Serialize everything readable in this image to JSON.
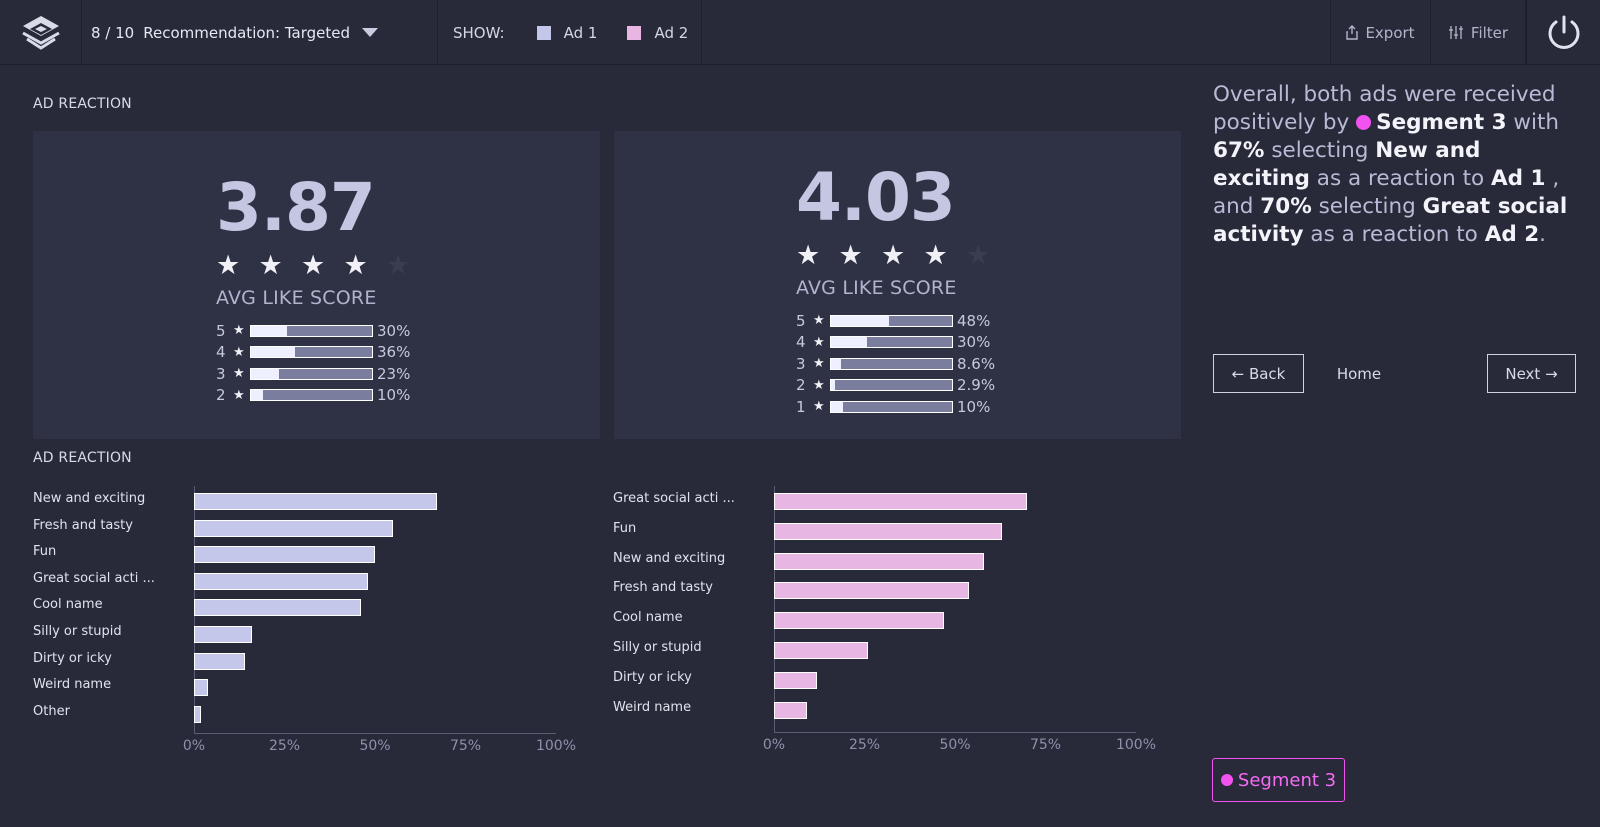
{
  "header": {
    "logo_icon": "stacked-layers-logo-icon",
    "step": "8 / 10",
    "recommendation": "Recommendation: Targeted",
    "show_label": "SHOW:",
    "legend": [
      {
        "label": "Ad 1",
        "color": "#c5c7ea"
      },
      {
        "label": "Ad 2",
        "color": "#e7b6e2"
      }
    ],
    "export_label": "Export",
    "filter_label": "Filter",
    "power_icon": "power-icon"
  },
  "ad_reaction_title": "AD REACTION",
  "ad_reaction_chart_title": "AD REACTION",
  "scores": [
    {
      "score": "3.87",
      "stars_filled": 4,
      "stars_total": 5,
      "label": "AVG LIKE SCORE",
      "distribution": [
        {
          "level": "5",
          "value": 30,
          "text": "30%"
        },
        {
          "level": "4",
          "value": 36,
          "text": "36%"
        },
        {
          "level": "3",
          "value": 23,
          "text": "23%"
        },
        {
          "level": "2",
          "value": 10,
          "text": "10%"
        }
      ]
    },
    {
      "score": "4.03",
      "stars_filled": 4,
      "stars_total": 5,
      "label": "AVG LIKE SCORE",
      "distribution": [
        {
          "level": "5",
          "value": 48,
          "text": "48%"
        },
        {
          "level": "4",
          "value": 30,
          "text": "30%"
        },
        {
          "level": "3",
          "value": 8.6,
          "text": "8.6%"
        },
        {
          "level": "2",
          "value": 2.9,
          "text": "2.9%"
        },
        {
          "level": "1",
          "value": 10,
          "text": "10%"
        }
      ]
    }
  ],
  "chart_data": [
    {
      "type": "bar",
      "orientation": "horizontal",
      "series_color": "#c5c7ea",
      "categories": [
        "New and exciting",
        "Fresh and tasty",
        "Fun",
        "Great social acti ...",
        "Cool name",
        "Silly or stupid",
        "Dirty or icky",
        "Weird name",
        "Other"
      ],
      "values": [
        67,
        55,
        50,
        48,
        46,
        16,
        14,
        4,
        2
      ],
      "xlim": [
        0,
        100
      ],
      "xticks": [
        "0%",
        "25%",
        "50%",
        "75%",
        "100%"
      ]
    },
    {
      "type": "bar",
      "orientation": "horizontal",
      "series_color": "#e7b6e2",
      "categories": [
        "Great social acti ...",
        "Fun",
        "New and exciting",
        "Fresh and tasty",
        "Cool name",
        "Silly or stupid",
        "Dirty or icky",
        "Weird name"
      ],
      "values": [
        70,
        63,
        58,
        54,
        47,
        26,
        12,
        9
      ],
      "xlim": [
        0,
        100
      ],
      "xticks": [
        "0%",
        "25%",
        "50%",
        "75%",
        "100%"
      ]
    }
  ],
  "summary": {
    "t1": "Overall, both ads were received positively by",
    "segment": "Segment 3",
    "t2": "with",
    "pct1": "67%",
    "t3": "selecting",
    "reaction1": "New and exciting",
    "t4": "as a reaction to",
    "ad1": "Ad 1",
    "t5": ", and",
    "pct2": "70%",
    "t6": "selecting",
    "reaction2": "Great social activity",
    "t7": "as a reaction to",
    "ad2": "Ad 2",
    "t8": "."
  },
  "nav": {
    "back": "← Back",
    "home": "Home",
    "next": "Next →"
  },
  "segment_badge": {
    "label": "Segment 3",
    "color": "#f152f0"
  }
}
